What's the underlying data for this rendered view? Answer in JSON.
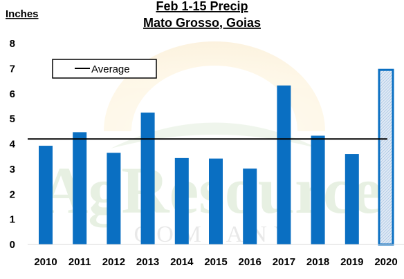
{
  "chart_data": {
    "type": "bar",
    "title_line1": "Feb 1-15 Precip",
    "title_line2": "Mato Grosso, Goias",
    "ylabel": "Inches",
    "ylim": [
      0,
      8
    ],
    "yticks": [
      "0",
      "1",
      "2",
      "3",
      "4",
      "5",
      "6",
      "7",
      "8"
    ],
    "categories": [
      "2010",
      "2011",
      "2012",
      "2013",
      "2014",
      "2015",
      "2016",
      "2017",
      "2018",
      "2019",
      "2020"
    ],
    "values": [
      3.93,
      4.47,
      3.65,
      5.25,
      3.44,
      3.42,
      3.02,
      6.33,
      4.33,
      3.6,
      6.95
    ],
    "highlight_index": 10,
    "bar_color": "#0a6fc2",
    "highlight_fill": "#c8dcef",
    "average": 4.2,
    "legend": {
      "label": "Average",
      "placement": "top-left"
    },
    "grid": false
  },
  "watermark": {
    "line1": "AgResource",
    "line2": "COMPANY"
  }
}
